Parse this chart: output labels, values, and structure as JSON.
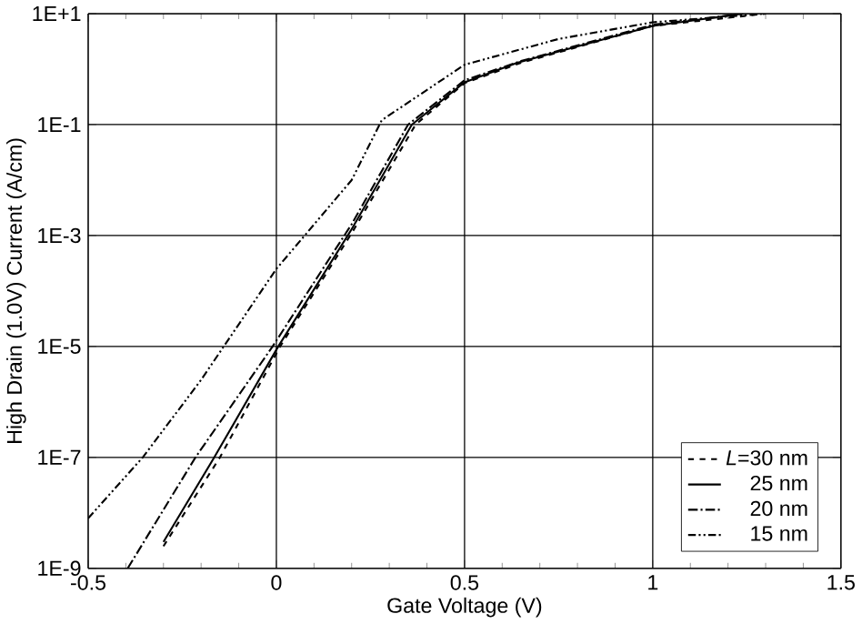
{
  "chart_data": {
    "type": "line",
    "xlabel": "Gate Voltage (V)",
    "ylabel": "High Drain (1.0V) Current (A/cm)",
    "log": "y",
    "grid": true,
    "legend": "right",
    "marker": "none",
    "xlim": [
      -0.5,
      1.5
    ],
    "xticks": [
      -0.5,
      0,
      0.5,
      1,
      1.5
    ],
    "ylim": [
      1e-09,
      10
    ],
    "yticks": [
      {
        "value": 1e-09,
        "label": "1E-9"
      },
      {
        "value": 1e-07,
        "label": "1E-7"
      },
      {
        "value": 1e-05,
        "label": "1E-5"
      },
      {
        "value": 0.001,
        "label": "1E-3"
      },
      {
        "value": 0.1,
        "label": "1E-1"
      },
      {
        "value": 10,
        "label": "1E+1"
      }
    ],
    "series": [
      {
        "name": "*L*=30 nm",
        "color": "#000000",
        "line_style": "dashed",
        "x": [
          -0.3,
          -0.15,
          0.01,
          0.2,
          0.37,
          0.5,
          0.65,
          1.0,
          1.3
        ],
        "values": [
          2.5e-09,
          1e-07,
          1e-05,
          0.0011,
          0.1,
          0.56,
          1.3,
          6,
          10
        ]
      },
      {
        "name": "25 nm",
        "color": "#000000",
        "line_style": "solid",
        "x": [
          -0.3,
          -0.165,
          0.005,
          0.2,
          0.36,
          0.5,
          0.64,
          1.0,
          1.24
        ],
        "values": [
          3e-09,
          1e-07,
          1e-05,
          0.0013,
          0.1,
          0.58,
          1.3,
          6,
          10
        ]
      },
      {
        "name": "20 nm",
        "color": "#000000",
        "line_style": "dashdotted",
        "x": [
          -0.395,
          -0.215,
          -0.01,
          0.2,
          0.35,
          0.5,
          0.65,
          1.0,
          1.24
        ],
        "values": [
          1e-09,
          1e-07,
          1e-05,
          0.0016,
          0.1,
          0.63,
          1.4,
          6.3,
          10
        ]
      },
      {
        "name": "15 nm",
        "color": "#000000",
        "line_style": "dashdotdotted",
        "x": [
          -0.5,
          -0.355,
          -0.2,
          0,
          0.2,
          0.28,
          0.5,
          0.75,
          1.0,
          1.3
        ],
        "values": [
          8e-09,
          1e-07,
          2.5e-06,
          0.00025,
          0.01,
          0.12,
          1.2,
          3.5,
          7,
          10
        ]
      }
    ]
  }
}
